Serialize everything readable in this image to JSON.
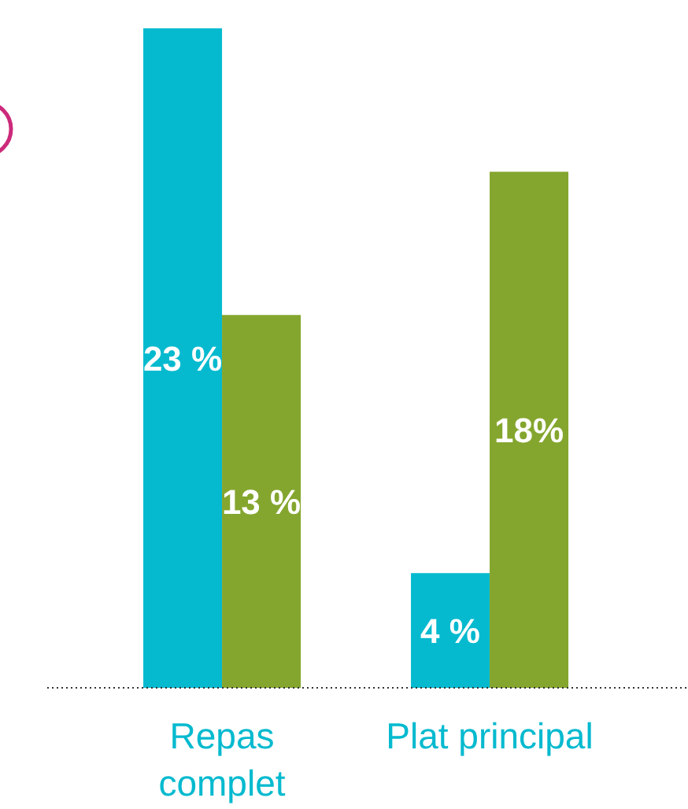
{
  "chart_data": {
    "type": "bar",
    "categories": [
      "Repas complet",
      "Plat principal"
    ],
    "series": [
      {
        "color": "#05bacf",
        "values": [
          23,
          4
        ],
        "value_labels": [
          "23 %",
          "4 %"
        ]
      },
      {
        "color": "#84a62e",
        "values": [
          13,
          18
        ],
        "value_labels": [
          "13 %",
          "18%"
        ]
      }
    ]
  }
}
